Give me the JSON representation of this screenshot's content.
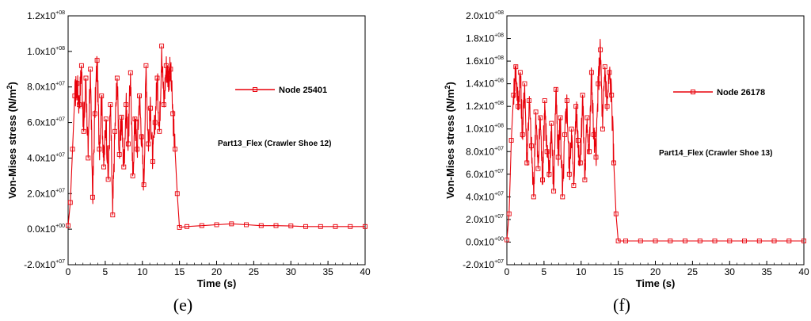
{
  "chart_data": [
    {
      "type": "line",
      "panel_label": "(e)",
      "xlabel": "Time (s)",
      "ylabel_prefix": "Von-Mises stress (N/m",
      "ylabel_sup": "2",
      "ylabel_suffix": ")",
      "xlim": [
        0,
        40
      ],
      "ylim": [
        -20000000,
        120000000
      ],
      "x_ticks": [
        0,
        5,
        10,
        15,
        20,
        25,
        30,
        35,
        40
      ],
      "y_ticks": [
        {
          "mant": "-2.0x10",
          "exp": "+07"
        },
        {
          "mant": "0.0x10",
          "exp": "+00"
        },
        {
          "mant": "2.0x10",
          "exp": "+07"
        },
        {
          "mant": "4.0x10",
          "exp": "+07"
        },
        {
          "mant": "6.0x10",
          "exp": "+07"
        },
        {
          "mant": "8.0x10",
          "exp": "+07"
        },
        {
          "mant": "1.0x10",
          "exp": "+08"
        },
        {
          "mant": "1.2x10",
          "exp": "+08"
        }
      ],
      "y_tick_values": [
        -20000000,
        0,
        20000000,
        40000000,
        60000000,
        80000000,
        100000000,
        120000000
      ],
      "legend_position": "top-right",
      "annotation": "Part13_Flex (Crawler Shoe 12)",
      "series": [
        {
          "name": "Node 25401",
          "color": "#e8000a",
          "x": [
            0,
            0.3,
            0.6,
            0.9,
            1.2,
            1.5,
            1.8,
            2.1,
            2.4,
            2.7,
            3.0,
            3.3,
            3.6,
            3.9,
            4.2,
            4.5,
            4.8,
            5.1,
            5.4,
            5.7,
            6.0,
            6.3,
            6.6,
            6.9,
            7.2,
            7.5,
            7.8,
            8.1,
            8.4,
            8.7,
            9.0,
            9.3,
            9.6,
            9.9,
            10.2,
            10.5,
            10.8,
            11.1,
            11.4,
            11.7,
            12.0,
            12.3,
            12.6,
            12.9,
            13.2,
            13.5,
            13.8,
            14.1,
            14.4,
            14.7,
            15.0,
            16,
            18,
            20,
            22,
            24,
            26,
            28,
            30,
            32,
            34,
            36,
            38,
            40
          ],
          "y": [
            2000000,
            15000000,
            45000000,
            75000000,
            82000000,
            70000000,
            92000000,
            55000000,
            85000000,
            40000000,
            90000000,
            18000000,
            65000000,
            95000000,
            45000000,
            75000000,
            35000000,
            62000000,
            28000000,
            70000000,
            8000000,
            55000000,
            85000000,
            42000000,
            63000000,
            35000000,
            70000000,
            48000000,
            88000000,
            30000000,
            62000000,
            45000000,
            75000000,
            52000000,
            25000000,
            92000000,
            48000000,
            68000000,
            38000000,
            60000000,
            85000000,
            55000000,
            103000000,
            70000000,
            92000000,
            85000000,
            90000000,
            65000000,
            45000000,
            20000000,
            1000000,
            1500000,
            2000000,
            2500000,
            3000000,
            2500000,
            2000000,
            2000000,
            1800000,
            1500000,
            1500000,
            1500000,
            1500000,
            1500000
          ]
        }
      ]
    },
    {
      "type": "line",
      "panel_label": "(f)",
      "xlabel": "Time (s)",
      "ylabel_prefix": "Von-Mises stress (N/m",
      "ylabel_sup": "2",
      "ylabel_suffix": ")",
      "xlim": [
        0,
        40
      ],
      "ylim": [
        -20000000,
        200000000
      ],
      "x_ticks": [
        0,
        5,
        10,
        15,
        20,
        25,
        30,
        35,
        40
      ],
      "y_ticks": [
        {
          "mant": "-2.0x10",
          "exp": "+07"
        },
        {
          "mant": "0.0x10",
          "exp": "+00"
        },
        {
          "mant": "2.0x10",
          "exp": "+07"
        },
        {
          "mant": "4.0x10",
          "exp": "+07"
        },
        {
          "mant": "6.0x10",
          "exp": "+07"
        },
        {
          "mant": "8.0x10",
          "exp": "+07"
        },
        {
          "mant": "1.0x10",
          "exp": "+08"
        },
        {
          "mant": "1.2x10",
          "exp": "+08"
        },
        {
          "mant": "1.4x10",
          "exp": "+08"
        },
        {
          "mant": "1.6x10",
          "exp": "+08"
        },
        {
          "mant": "1.8x10",
          "exp": "+08"
        },
        {
          "mant": "2.0x10",
          "exp": "+08"
        }
      ],
      "y_tick_values": [
        -20000000,
        0,
        20000000,
        40000000,
        60000000,
        80000000,
        100000000,
        120000000,
        140000000,
        160000000,
        180000000,
        200000000
      ],
      "legend_position": "top-right",
      "annotation": "Part14_Flex (Crawler Shoe 13)",
      "series": [
        {
          "name": "Node 26178",
          "color": "#e8000a",
          "x": [
            0,
            0.3,
            0.6,
            0.9,
            1.2,
            1.5,
            1.8,
            2.1,
            2.4,
            2.7,
            3.0,
            3.3,
            3.6,
            3.9,
            4.2,
            4.5,
            4.8,
            5.1,
            5.4,
            5.7,
            6.0,
            6.3,
            6.6,
            6.9,
            7.2,
            7.5,
            7.8,
            8.1,
            8.4,
            8.7,
            9.0,
            9.3,
            9.6,
            9.9,
            10.2,
            10.5,
            10.8,
            11.1,
            11.4,
            11.7,
            12.0,
            12.3,
            12.6,
            12.9,
            13.2,
            13.5,
            13.8,
            14.1,
            14.4,
            14.7,
            15.0,
            16,
            18,
            20,
            22,
            24,
            26,
            28,
            30,
            32,
            34,
            36,
            38,
            40
          ],
          "y": [
            2000000,
            25000000,
            90000000,
            130000000,
            155000000,
            120000000,
            150000000,
            95000000,
            140000000,
            70000000,
            125000000,
            85000000,
            40000000,
            115000000,
            65000000,
            110000000,
            55000000,
            125000000,
            80000000,
            60000000,
            105000000,
            45000000,
            135000000,
            75000000,
            110000000,
            40000000,
            95000000,
            125000000,
            60000000,
            100000000,
            50000000,
            120000000,
            90000000,
            70000000,
            130000000,
            55000000,
            110000000,
            80000000,
            150000000,
            95000000,
            75000000,
            140000000,
            170000000,
            100000000,
            155000000,
            120000000,
            150000000,
            130000000,
            70000000,
            25000000,
            1000000,
            1000000,
            1000000,
            1000000,
            1000000,
            1000000,
            1000000,
            1000000,
            1000000,
            1000000,
            1000000,
            1000000,
            1000000,
            1000000
          ]
        }
      ]
    }
  ]
}
